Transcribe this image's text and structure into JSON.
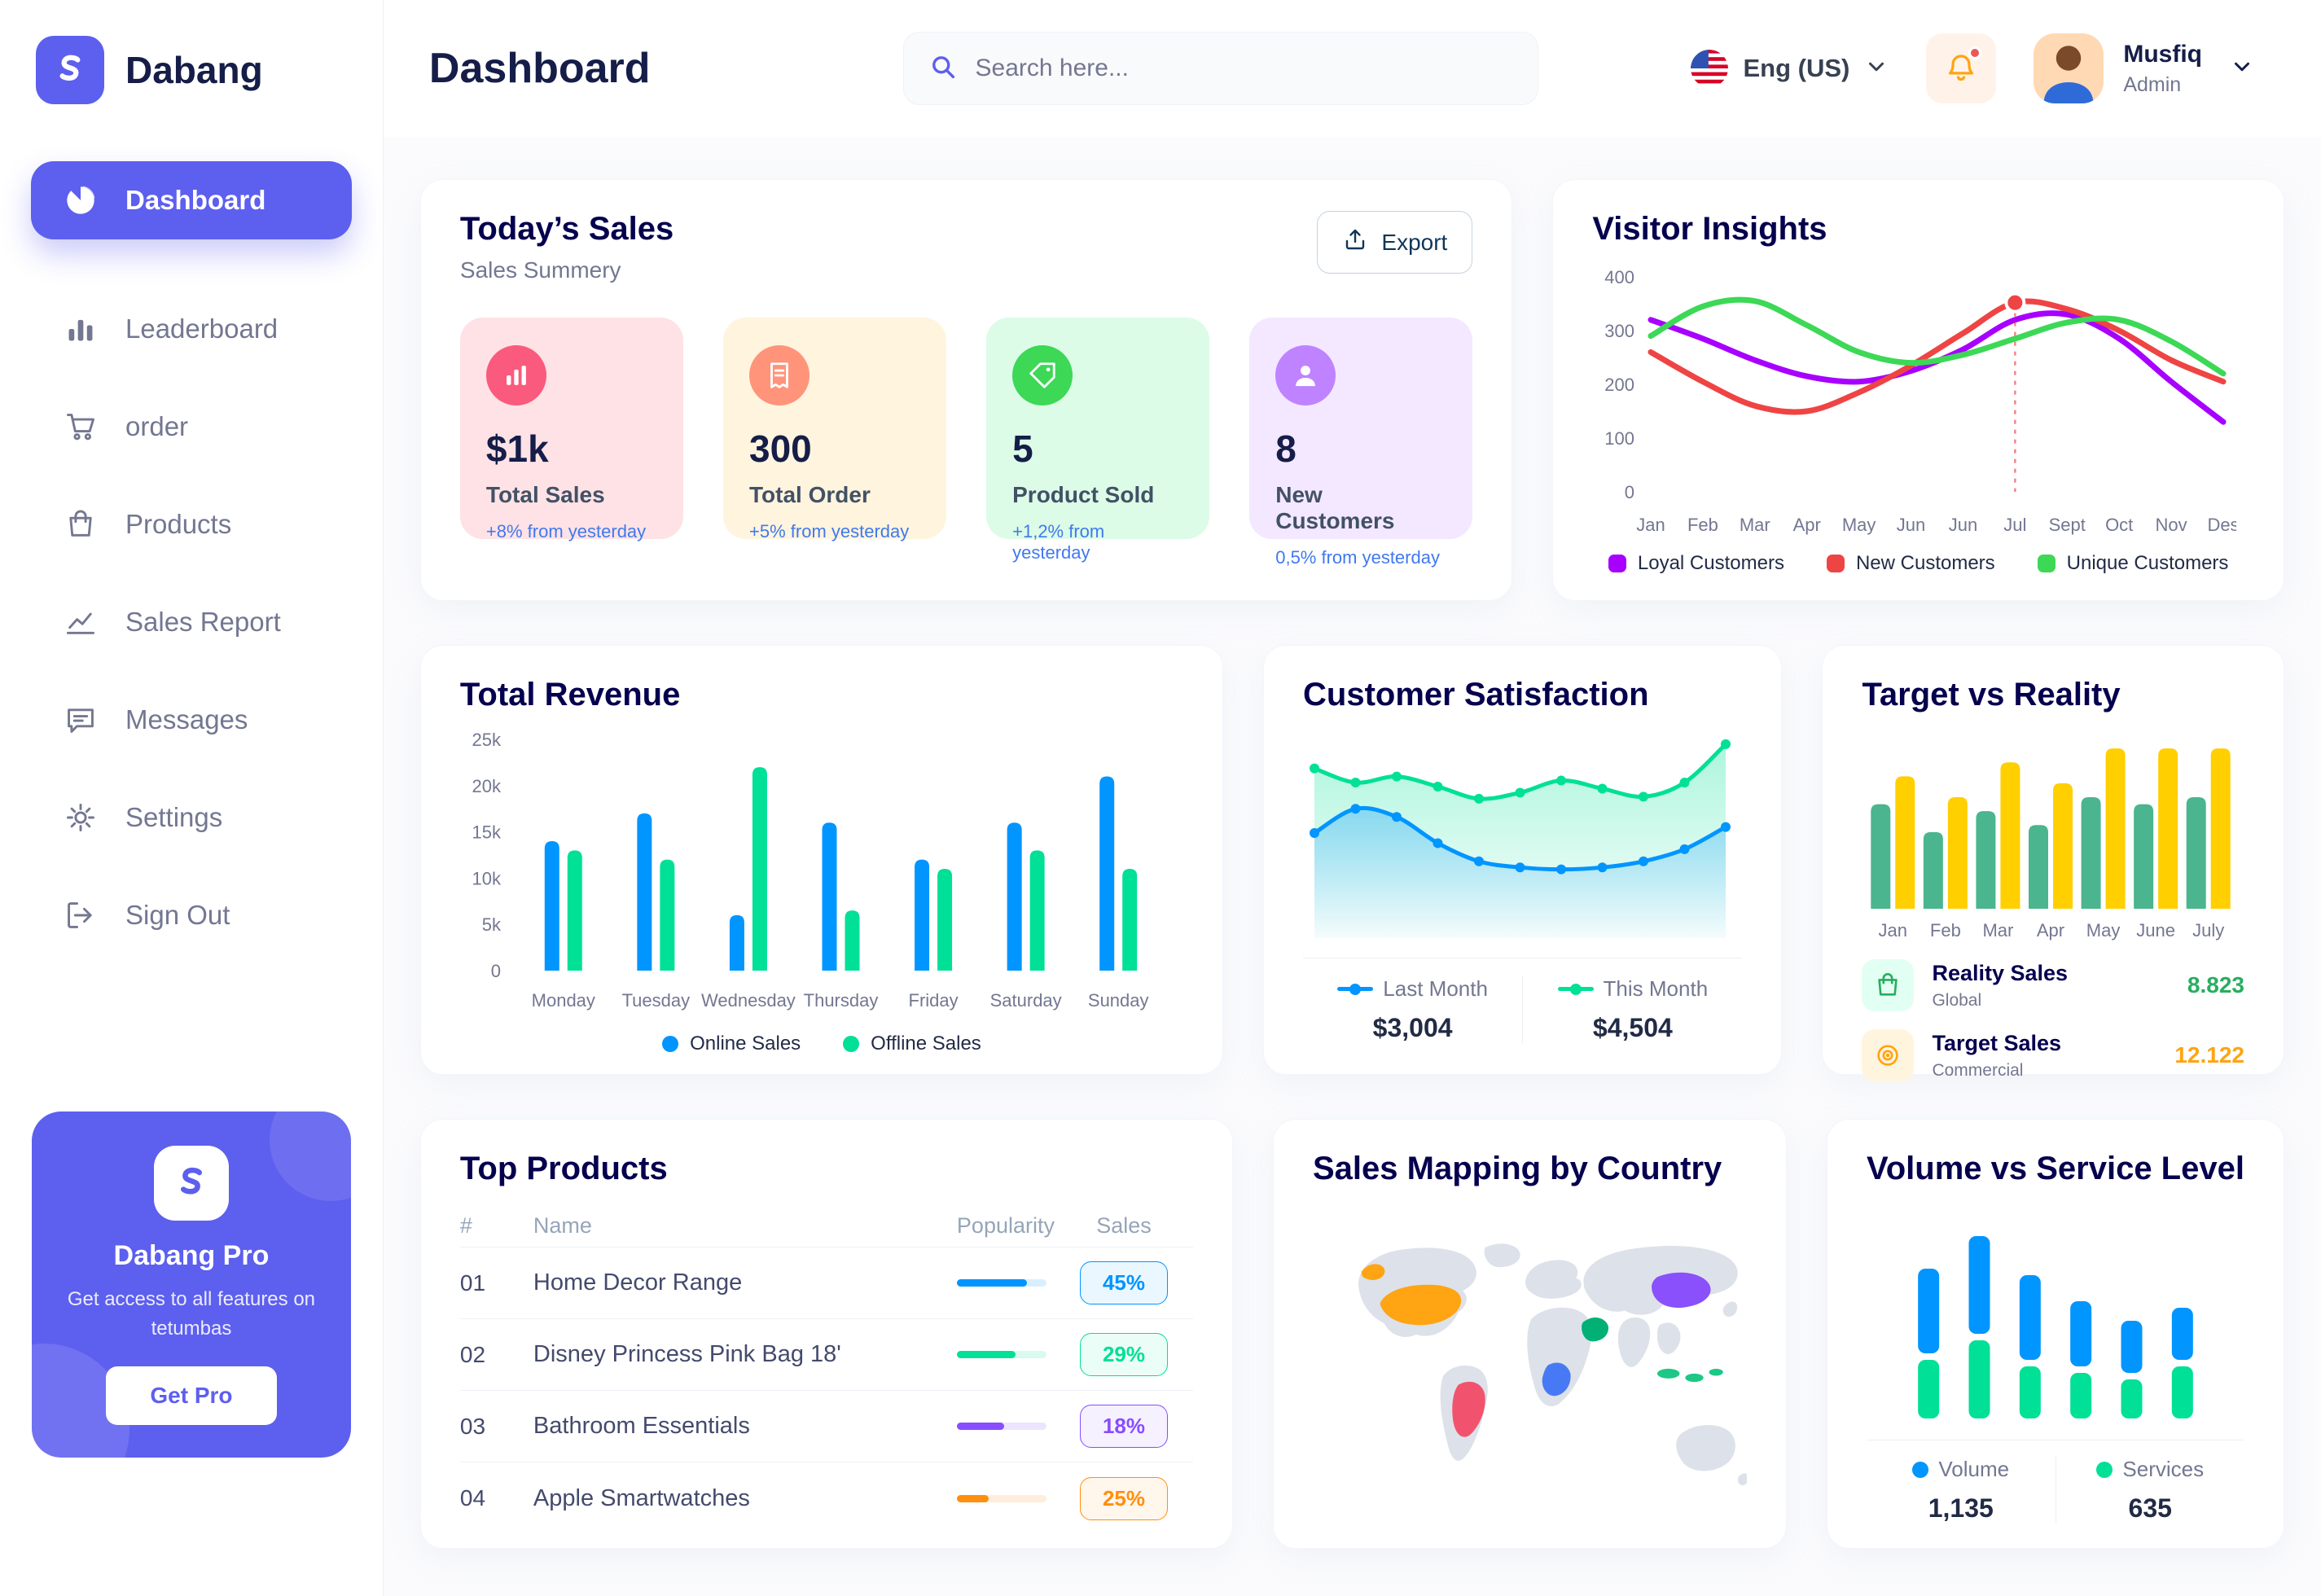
{
  "brand": {
    "name": "Dabang"
  },
  "header": {
    "title": "Dashboard",
    "search": {
      "placeholder": "Search here..."
    },
    "language": {
      "label": "Eng (US)"
    },
    "user": {
      "name": "Musfiq",
      "role": "Admin"
    }
  },
  "sidebar": {
    "items": [
      {
        "label": "Dashboard"
      },
      {
        "label": "Leaderboard"
      },
      {
        "label": "order"
      },
      {
        "label": "Products"
      },
      {
        "label": "Sales Report"
      },
      {
        "label": "Messages"
      },
      {
        "label": "Settings"
      },
      {
        "label": "Sign Out"
      }
    ],
    "promo": {
      "title": "Dabang Pro",
      "subtitle": "Get access to all features on tetumbas",
      "button": "Get Pro"
    }
  },
  "today_sales": {
    "title": "Today’s Sales",
    "subtitle": "Sales Summery",
    "export_label": "Export",
    "stats": [
      {
        "value": "$1k",
        "label": "Total Sales",
        "delta": "+8% from yesterday",
        "card_bg": "#FFE2E5",
        "icon_bg": "#FA5A7D"
      },
      {
        "value": "300",
        "label": "Total Order",
        "delta": "+5% from yesterday",
        "card_bg": "#FFF4DE",
        "icon_bg": "#FF947A"
      },
      {
        "value": "5",
        "label": "Product Sold",
        "delta": "+1,2% from yesterday",
        "card_bg": "#DCFCE7",
        "icon_bg": "#3CD856"
      },
      {
        "value": "8",
        "label": "New Customers",
        "delta": "0,5% from yesterday",
        "card_bg": "#F3E8FF",
        "icon_bg": "#BF83FF"
      }
    ]
  },
  "visitor_insights": {
    "title": "Visitor Insights",
    "chart": {
      "type": "line",
      "x": [
        "Jan",
        "Feb",
        "Mar",
        "Apr",
        "May",
        "Jun",
        "Jun",
        "Jul",
        "Sept",
        "Oct",
        "Nov",
        "Des"
      ],
      "ylim": [
        0,
        400
      ],
      "yticks": [
        0,
        100,
        200,
        300,
        400
      ],
      "series": [
        {
          "name": "Loyal Customers",
          "color": "#A700FF",
          "values": [
            320,
            285,
            245,
            215,
            205,
            225,
            265,
            320,
            330,
            285,
            205,
            130
          ]
        },
        {
          "name": "New Customers",
          "color": "#EF4444",
          "values": [
            260,
            205,
            160,
            150,
            185,
            235,
            295,
            352,
            340,
            300,
            245,
            205
          ],
          "marker_index": 7
        },
        {
          "name": "Unique Customers",
          "color": "#3CD856",
          "values": [
            290,
            345,
            355,
            310,
            260,
            240,
            255,
            285,
            315,
            320,
            280,
            220
          ]
        }
      ]
    }
  },
  "total_revenue": {
    "title": "Total Revenue",
    "chart": {
      "type": "bar",
      "categories": [
        "Monday",
        "Tuesday",
        "Wednesday",
        "Thursday",
        "Friday",
        "Saturday",
        "Sunday"
      ],
      "ymax": 25000,
      "ytick_labels": [
        "0",
        "5k",
        "10k",
        "15k",
        "20k",
        "25k"
      ],
      "series": [
        {
          "name": "Online Sales",
          "color": "#0095FF",
          "values": [
            14000,
            17000,
            6000,
            16000,
            12000,
            16000,
            21000
          ]
        },
        {
          "name": "Offline Sales",
          "color": "#00E096",
          "values": [
            13000,
            12000,
            22000,
            6500,
            11000,
            13000,
            11000
          ]
        }
      ]
    }
  },
  "customer_satisfaction": {
    "title": "Customer Satisfaction",
    "chart": {
      "type": "area",
      "series": [
        {
          "name": "Last Month",
          "color": "#0095FF",
          "total": "$3,004",
          "values": [
            52,
            64,
            60,
            47,
            38,
            35,
            34,
            35,
            38,
            44,
            55
          ]
        },
        {
          "name": "This Month",
          "color": "#00E096",
          "total": "$4,504",
          "values": [
            84,
            77,
            80,
            75,
            69,
            72,
            78,
            74,
            70,
            77,
            96
          ]
        }
      ]
    }
  },
  "target_vs_reality": {
    "title": "Target vs Reality",
    "chart": {
      "type": "bar",
      "categories": [
        "Jan",
        "Feb",
        "Mar",
        "Apr",
        "May",
        "June",
        "July"
      ],
      "ymax": 12.5,
      "series": [
        {
          "name": "Reality Sales",
          "subtitle": "Global",
          "value_label": "8.823",
          "value_color": "#27AE60",
          "color": "#4AB58E",
          "values": [
            7.5,
            5.5,
            7,
            6,
            8,
            7.5,
            8
          ]
        },
        {
          "name": "Target Sales",
          "subtitle": "Commercial",
          "value_label": "12.122",
          "value_color": "#FFA412",
          "color": "#FFCF00",
          "values": [
            9.5,
            8,
            10.5,
            9,
            11.5,
            11.5,
            11.5
          ]
        }
      ]
    }
  },
  "top_products": {
    "title": "Top Products",
    "columns": [
      "#",
      "Name",
      "Popularity",
      "Sales"
    ],
    "rows": [
      {
        "id": "01",
        "name": "Home Decor Range",
        "popularity": 78,
        "sales": "45%",
        "color": "#0095FF"
      },
      {
        "id": "02",
        "name": "Disney Princess Pink Bag 18'",
        "popularity": 65,
        "sales": "29%",
        "color": "#00E096"
      },
      {
        "id": "03",
        "name": "Bathroom Essentials",
        "popularity": 53,
        "sales": "18%",
        "color": "#884DFF"
      },
      {
        "id": "04",
        "name": "Apple Smartwatches",
        "popularity": 35,
        "sales": "25%",
        "color": "#FF8F0D"
      }
    ]
  },
  "sales_map": {
    "title": "Sales Mapping by Country",
    "regions": {
      "usa": "#FFA412",
      "brazil": "#F1536E",
      "central_africa": "#4879F5",
      "saudi_arabia": "#00B074",
      "china": "#8950FC",
      "indonesia": "#1EC787"
    }
  },
  "volume_service": {
    "title": "Volume vs Service Level",
    "chart": {
      "type": "stacked-bar",
      "series": [
        {
          "name": "Volume",
          "color": "#0095FF",
          "total": "1,135",
          "values": [
            65,
            75,
            65,
            50,
            40,
            40
          ]
        },
        {
          "name": "Services",
          "color": "#00E096",
          "total": "635",
          "values": [
            45,
            60,
            40,
            35,
            30,
            40
          ]
        }
      ]
    }
  }
}
